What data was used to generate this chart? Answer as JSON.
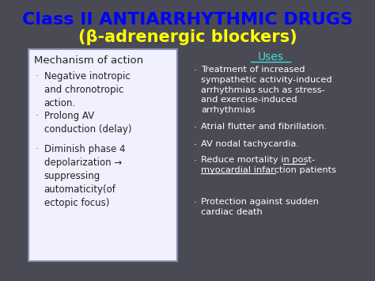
{
  "title_line1": "Class II ANTIARRHYTHMIC DRUGS",
  "title_line2": "(β-adrenergic blockers)",
  "title_line1_color": "#0000ff",
  "title_line2_color": "#ffff00",
  "bg_color": "#4a4a55",
  "left_box_bg": "#f0f0ff",
  "left_box_border": "#8888aa",
  "left_header": "Mechanism of action",
  "left_bullets": [
    "Negative inotropic\nand chronotropic\naction.",
    "Prolong AV\nconduction (delay)",
    "Diminish phase 4\ndepolarization →\nsuppressing\nautomaticity(of\nectopic focus)"
  ],
  "right_header": "Uses",
  "right_header_color": "#44dddd",
  "right_bullets": [
    "Treatment of increased\nsympathetic activity-induced\narrhythmias such as stress-\nand exercise-induced\narrhythmias",
    "Atrial flutter and fibrillation.",
    "AV nodal tachycardia.",
    "Reduce mortality in post-\nmyocardial infarction patients",
    "Protection against sudden\ncardiac death"
  ],
  "right_text_color": "#ffffff",
  "bullet_char": "·",
  "figsize": [
    4.74,
    3.55
  ],
  "dpi": 100
}
